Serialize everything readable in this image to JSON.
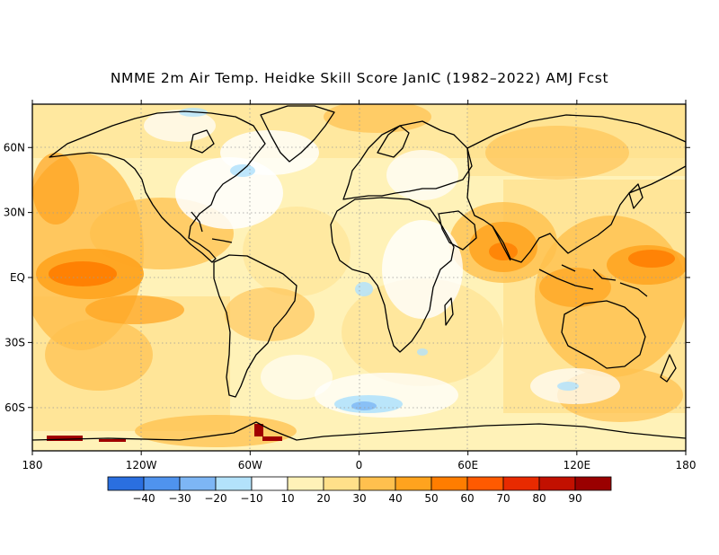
{
  "title": "NMME 2m Air Temp. Heidke Skill Score JanIC (1982–2022) AMJ Fcst",
  "map": {
    "lat_labels": [
      "60N",
      "30N",
      "EQ",
      "30S",
      "60S"
    ],
    "lat_values": [
      60,
      30,
      0,
      -30,
      -60
    ],
    "lon_labels": [
      "180",
      "120W",
      "60W",
      "0",
      "60E",
      "120E",
      "180"
    ],
    "lon_values": [
      -180,
      -120,
      -60,
      0,
      60,
      120,
      180
    ],
    "lat_range": [
      -80,
      80
    ],
    "lon_range": [
      -180,
      180
    ],
    "gridlines": "dotted"
  },
  "colorbar": {
    "labels": [
      "-40",
      "-30",
      "-20",
      "-10",
      "10",
      "20",
      "30",
      "40",
      "50",
      "60",
      "70",
      "80",
      "90"
    ],
    "colors": [
      "#2a6fe0",
      "#4f93ee",
      "#7db6f5",
      "#b3e2fb",
      "#ffffff",
      "#fff2b8",
      "#ffe08a",
      "#ffc04e",
      "#ffa31e",
      "#ff7d00",
      "#ff5a00",
      "#e82a00",
      "#c21000",
      "#9a0000"
    ]
  },
  "palette": {
    "light_yellow": "#fff2b8",
    "yellow": "#ffe08a",
    "light_orange": "#ffc04e",
    "orange": "#ffa31e",
    "dark_orange": "#ff7d00",
    "red_orange": "#ff5a00",
    "light_blue": "#b3e2fb",
    "blue": "#7db6f5",
    "dark_red": "#a00000",
    "coast": "#000000"
  }
}
